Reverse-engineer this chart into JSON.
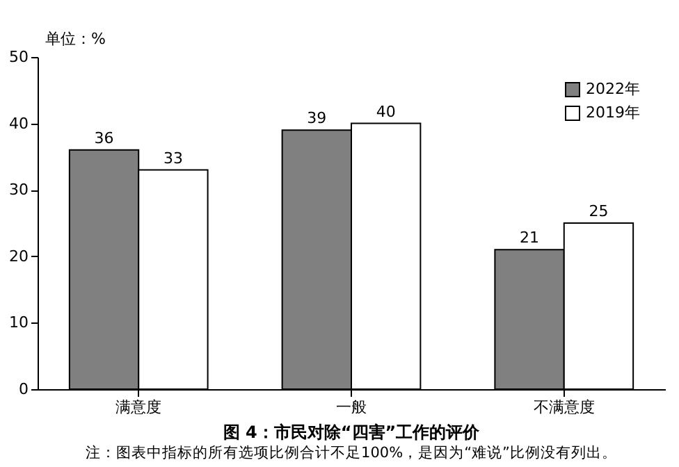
{
  "chart_data": {
    "type": "bar",
    "title": "图 4：市民对除“四害”工作的评价",
    "ylabel": "单位：%",
    "annotations": [
      "注：图表中指标的所有选项比例合计不足100%，是因为“难说”比例没有列出。"
    ],
    "categories": [
      "满意度",
      "一般",
      "不满意度"
    ],
    "series": [
      {
        "name": "2022年",
        "color": "#808080",
        "values": [
          36,
          39,
          21
        ]
      },
      {
        "name": "2019年",
        "color": "#ffffff",
        "values": [
          33,
          40,
          25
        ]
      }
    ],
    "ylim": [
      0,
      50
    ],
    "yticks": [
      0,
      10,
      20,
      30,
      40,
      50
    ],
    "data_labels": true,
    "legend": "top right"
  }
}
